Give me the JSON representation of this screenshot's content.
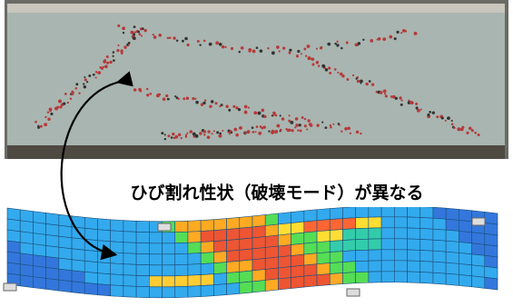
{
  "caption": "ひび割れ性状（破壊モード）が異なる"
}
